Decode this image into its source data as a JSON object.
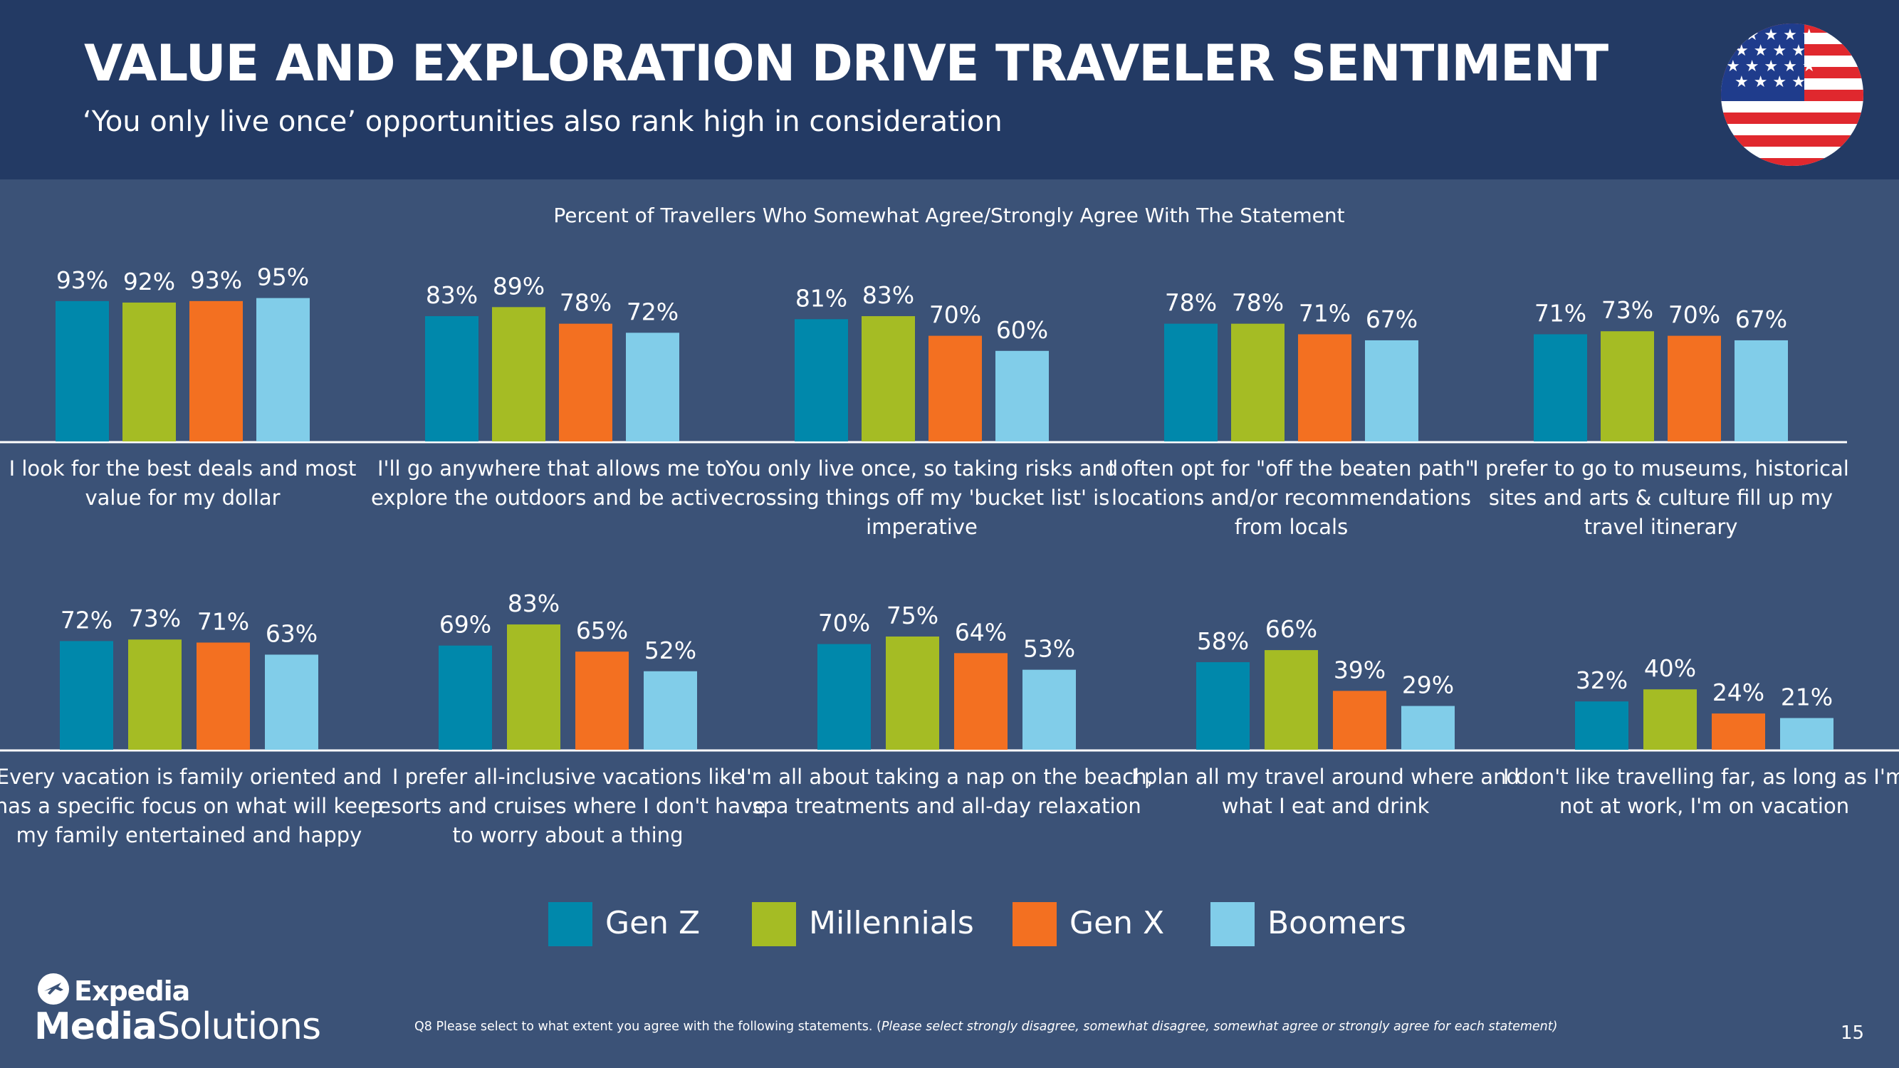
{
  "header": {
    "title": "VALUE AND EXPLORATION DRIVE TRAVELER SENTIMENT",
    "subtitle": "‘You only live once’ opportunities also rank high in consideration",
    "flag_icon": "us-flag-icon"
  },
  "colors": {
    "gen_z": "#0088ab",
    "millennials": "#a5bc24",
    "gen_x": "#f37021",
    "boomers": "#81cde9",
    "header_bg": "#233a64",
    "page_bg": "#3b5277"
  },
  "chart_data": {
    "type": "bar",
    "title": "Percent of Travellers Who Somewhat Agree/Strongly Agree With The Statement",
    "unit": "%",
    "ylim": [
      0,
      100
    ],
    "series_names": [
      "Gen Z",
      "Millennials",
      "Gen X",
      "Boomers"
    ],
    "groups": [
      {
        "label": [
          "I look for the best deals and most",
          "value for my dollar"
        ],
        "values": [
          93,
          92,
          93,
          95
        ]
      },
      {
        "label": [
          "I'll go anywhere that allows me to",
          "explore the outdoors and be active"
        ],
        "values": [
          83,
          89,
          78,
          72
        ]
      },
      {
        "label": [
          "You only live once, so taking risks and",
          "crossing things off my 'bucket list' is",
          "imperative"
        ],
        "values": [
          81,
          83,
          70,
          60
        ]
      },
      {
        "label": [
          "I often opt for \"off the beaten path\"",
          "locations and/or recommendations",
          "from locals"
        ],
        "values": [
          78,
          78,
          71,
          67
        ]
      },
      {
        "label": [
          "I prefer to go to museums, historical",
          "sites and arts & culture fill up my",
          "travel itinerary"
        ],
        "values": [
          71,
          73,
          70,
          67
        ]
      },
      {
        "label": [
          "Every vacation is family oriented and",
          "has a specific focus on what will keep",
          "my family entertained and happy"
        ],
        "values": [
          72,
          73,
          71,
          63
        ]
      },
      {
        "label": [
          "I prefer all-inclusive vacations like",
          "resorts and cruises where I don't have",
          "to worry about a thing"
        ],
        "values": [
          69,
          83,
          65,
          52
        ]
      },
      {
        "label": [
          "I'm all about taking a nap on the beach,",
          "spa treatments and all-day relaxation"
        ],
        "values": [
          70,
          75,
          64,
          53
        ]
      },
      {
        "label": [
          "I plan all my travel around where and",
          "what I eat and drink"
        ],
        "values": [
          58,
          66,
          39,
          29
        ]
      },
      {
        "label": [
          "I don't like travelling far, as long as I'm",
          "not at work, I'm on vacation"
        ],
        "values": [
          32,
          40,
          24,
          21
        ]
      }
    ]
  },
  "legend": {
    "items": [
      {
        "label": "Gen Z",
        "key": "gen_z"
      },
      {
        "label": "Millennials",
        "key": "millennials"
      },
      {
        "label": "Gen X",
        "key": "gen_x"
      },
      {
        "label": "Boomers",
        "key": "boomers"
      }
    ]
  },
  "footer": {
    "logo_top": "Expedia",
    "logo_bottom_bold": "Media",
    "logo_bottom_regular": "Solutions",
    "footnote_main": "Q8 Please select to what extent you agree with the following statements. (",
    "footnote_italic": "Please select strongly disagree, somewhat disagree, somewhat agree or strongly agree for each statement)",
    "page_number": "15"
  }
}
